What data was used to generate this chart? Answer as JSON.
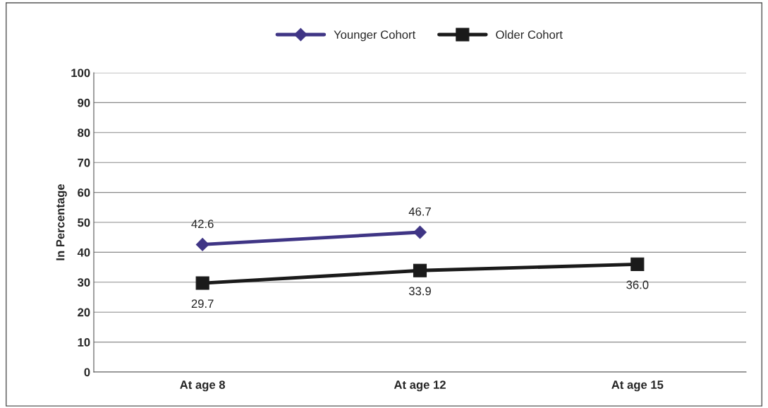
{
  "chart_data": {
    "type": "line",
    "ylabel": "In Percentage",
    "categories": [
      "At age 8",
      "At age 12",
      "At age 15"
    ],
    "series": [
      {
        "name": "Younger Cohort",
        "color": "#3f3585",
        "marker": "diamond",
        "values": [
          42.6,
          46.7,
          null
        ],
        "value_labels": [
          "42.6",
          "46.7",
          null
        ]
      },
      {
        "name": "Older Cohort",
        "color": "#1a1a1a",
        "marker": "square",
        "values": [
          29.7,
          33.9,
          36.0
        ],
        "value_labels": [
          "29.7",
          "33.9",
          "36.0"
        ]
      }
    ],
    "ylim": [
      0,
      100
    ],
    "yticks": [
      0,
      10,
      20,
      30,
      40,
      50,
      60,
      70,
      80,
      90,
      100
    ],
    "grid": "y",
    "legend": "top",
    "line_style": "solid"
  }
}
